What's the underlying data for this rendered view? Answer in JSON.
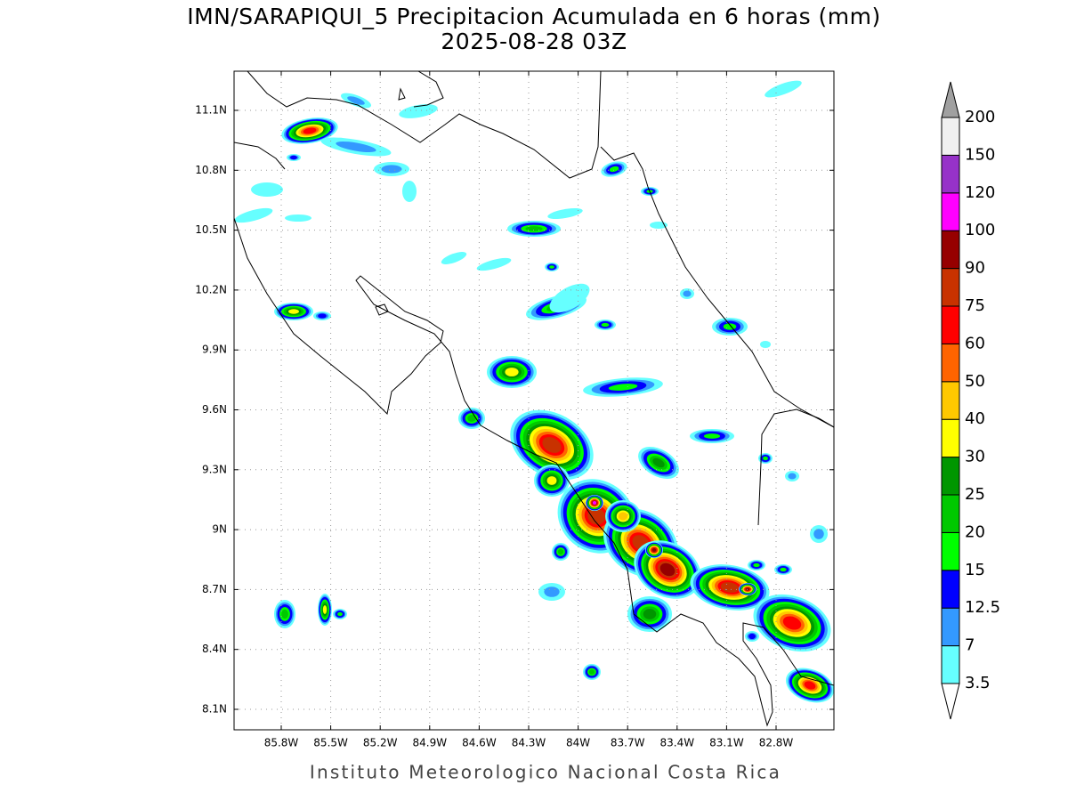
{
  "title": "IMN/SARAPIQUI_5 Precipitacion Acumulada en 6 horas (mm)",
  "subtitle": "2025-08-28 03Z",
  "x_labels": [
    "85.8W",
    "85.5W",
    "85.2W",
    "84.9W",
    "84.6W",
    "84.3W",
    "84W",
    "83.7W",
    "83.4W",
    "83.1W",
    "82.8W"
  ],
  "y_labels": [
    "11.1N",
    "10.8N",
    "10.5N",
    "10.2N",
    "9.9N",
    "9.6N",
    "9.3N",
    "9N",
    "8.7N",
    "8.4N",
    "8.1N"
  ],
  "colorbar": {
    "levels": [
      "3.5",
      "7",
      "12.5",
      "15",
      "20",
      "25",
      "30",
      "40",
      "50",
      "60",
      "75",
      "90",
      "100",
      "120",
      "150",
      "200"
    ],
    "colors": [
      "#66ffff",
      "#3399ff",
      "#0000ff",
      "#00ff00",
      "#00c800",
      "#009600",
      "#ffff00",
      "#ffc800",
      "#ff6400",
      "#ff0000",
      "#c83200",
      "#960000",
      "#ff00ff",
      "#9632c8",
      "#f0f0f0"
    ],
    "under_color": "#ffffff",
    "over_color": "#a0a0a0"
  },
  "footer": "Instituto Meteorologico Nacional Costa Rica"
}
